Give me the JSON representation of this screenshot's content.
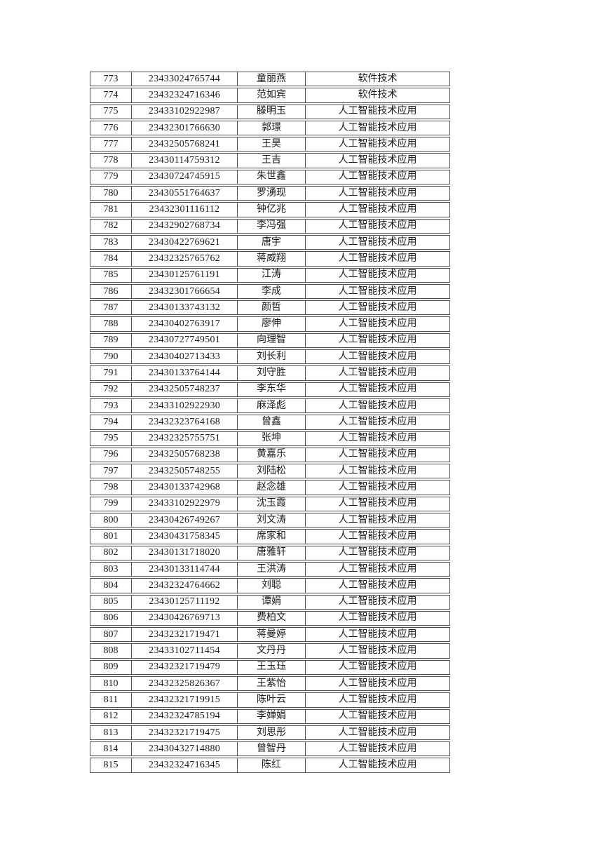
{
  "colors": {
    "background": "#ffffff",
    "border": "#4f4f4f",
    "text": "#1a1a1a"
  },
  "majors": {
    "software": "软件技术",
    "ai": "人工智能技术应用"
  },
  "table": {
    "rows": [
      [
        "773",
        "23433024765744",
        "童丽燕",
        "软件技术"
      ],
      [
        "774",
        "23432324716346",
        "范如宾",
        "软件技术"
      ],
      [
        "775",
        "23433102922987",
        "滕明玉",
        "人工智能技术应用"
      ],
      [
        "776",
        "23432301766630",
        "郭璟",
        "人工智能技术应用"
      ],
      [
        "777",
        "23432505768241",
        "王昊",
        "人工智能技术应用"
      ],
      [
        "778",
        "23430114759312",
        "王吉",
        "人工智能技术应用"
      ],
      [
        "779",
        "23430724745915",
        "朱世鑫",
        "人工智能技术应用"
      ],
      [
        "780",
        "23430551764637",
        "罗湧现",
        "人工智能技术应用"
      ],
      [
        "781",
        "23432301116112",
        "钟亿兆",
        "人工智能技术应用"
      ],
      [
        "782",
        "23432902768734",
        "李冯强",
        "人工智能技术应用"
      ],
      [
        "783",
        "23430422769621",
        "唐宇",
        "人工智能技术应用"
      ],
      [
        "784",
        "23432325765762",
        "蒋威翔",
        "人工智能技术应用"
      ],
      [
        "785",
        "23430125761191",
        "江涛",
        "人工智能技术应用"
      ],
      [
        "786",
        "23432301766654",
        "李成",
        "人工智能技术应用"
      ],
      [
        "787",
        "23430133743132",
        "颜哲",
        "人工智能技术应用"
      ],
      [
        "788",
        "23430402763917",
        "廖伸",
        "人工智能技术应用"
      ],
      [
        "789",
        "23430727749501",
        "向理智",
        "人工智能技术应用"
      ],
      [
        "790",
        "23430402713433",
        "刘长利",
        "人工智能技术应用"
      ],
      [
        "791",
        "23430133764144",
        "刘守胜",
        "人工智能技术应用"
      ],
      [
        "792",
        "23432505748237",
        "李东华",
        "人工智能技术应用"
      ],
      [
        "793",
        "23433102922930",
        "麻泽彪",
        "人工智能技术应用"
      ],
      [
        "794",
        "23432323764168",
        "曾鑫",
        "人工智能技术应用"
      ],
      [
        "795",
        "23432325755751",
        "张坤",
        "人工智能技术应用"
      ],
      [
        "796",
        "23432505768238",
        "黄嘉乐",
        "人工智能技术应用"
      ],
      [
        "797",
        "23432505748255",
        "刘陆松",
        "人工智能技术应用"
      ],
      [
        "798",
        "23430133742968",
        "赵念雄",
        "人工智能技术应用"
      ],
      [
        "799",
        "23433102922979",
        "沈玉霞",
        "人工智能技术应用"
      ],
      [
        "800",
        "23430426749267",
        "刘文涛",
        "人工智能技术应用"
      ],
      [
        "801",
        "23430431758345",
        "席家和",
        "人工智能技术应用"
      ],
      [
        "802",
        "23430131718020",
        "唐雅轩",
        "人工智能技术应用"
      ],
      [
        "803",
        "23430133114744",
        "王洪涛",
        "人工智能技术应用"
      ],
      [
        "804",
        "23432324764662",
        "刘聪",
        "人工智能技术应用"
      ],
      [
        "805",
        "23430125711192",
        "谭娟",
        "人工智能技术应用"
      ],
      [
        "806",
        "23430426769713",
        "费柏文",
        "人工智能技术应用"
      ],
      [
        "807",
        "23432321719471",
        "蒋曼婷",
        "人工智能技术应用"
      ],
      [
        "808",
        "23433102711454",
        "文丹丹",
        "人工智能技术应用"
      ],
      [
        "809",
        "23432321719479",
        "王玉珏",
        "人工智能技术应用"
      ],
      [
        "810",
        "23432325826367",
        "王紫怡",
        "人工智能技术应用"
      ],
      [
        "811",
        "23432321719915",
        "陈叶云",
        "人工智能技术应用"
      ],
      [
        "812",
        "23432324785194",
        "李婵娟",
        "人工智能技术应用"
      ],
      [
        "813",
        "23432321719475",
        "刘思彤",
        "人工智能技术应用"
      ],
      [
        "814",
        "23430432714880",
        "曾智丹",
        "人工智能技术应用"
      ],
      [
        "815",
        "23432324716345",
        "陈红",
        "人工智能技术应用"
      ]
    ]
  }
}
